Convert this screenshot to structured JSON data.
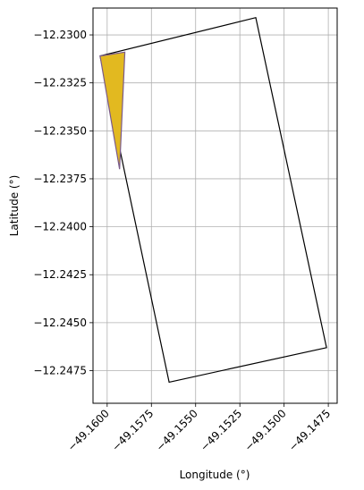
{
  "chart_data": {
    "type": "map-polygons",
    "xlabel": "Longitude (°)",
    "ylabel": "Latitude (°)",
    "xlim": [
      -49.1608,
      -49.147
    ],
    "ylim": [
      -12.2492,
      -12.2286
    ],
    "grid": true,
    "x_ticks": [
      -49.16,
      -49.1575,
      -49.155,
      -49.1525,
      -49.15,
      -49.1475
    ],
    "x_tick_labels": [
      "−49.1600",
      "−49.1575",
      "−49.1550",
      "−49.1525",
      "−49.1500",
      "−49.1475"
    ],
    "y_ticks": [
      -12.23,
      -12.2325,
      -12.235,
      -12.2375,
      -12.24,
      -12.2425,
      -12.245,
      -12.2475
    ],
    "y_tick_labels": [
      "−12.2300",
      "−12.2325",
      "−12.2350",
      "−12.2375",
      "−12.2400",
      "−12.2425",
      "−12.2450",
      "−12.2475"
    ],
    "polygons": [
      {
        "role": "outline",
        "fill": "none",
        "stroke": "#000000",
        "points": [
          [
            -49.1604,
            -12.2311
          ],
          [
            -49.1516,
            -12.2291
          ],
          [
            -49.1476,
            -12.2463
          ],
          [
            -49.1565,
            -12.2481
          ]
        ]
      },
      {
        "role": "highlight",
        "fill": "#e2b920",
        "stroke": "#7a5a8a",
        "points": [
          [
            -49.1604,
            -12.2311
          ],
          [
            -49.159,
            -12.2309
          ],
          [
            -49.1593,
            -12.237
          ]
        ]
      }
    ]
  }
}
